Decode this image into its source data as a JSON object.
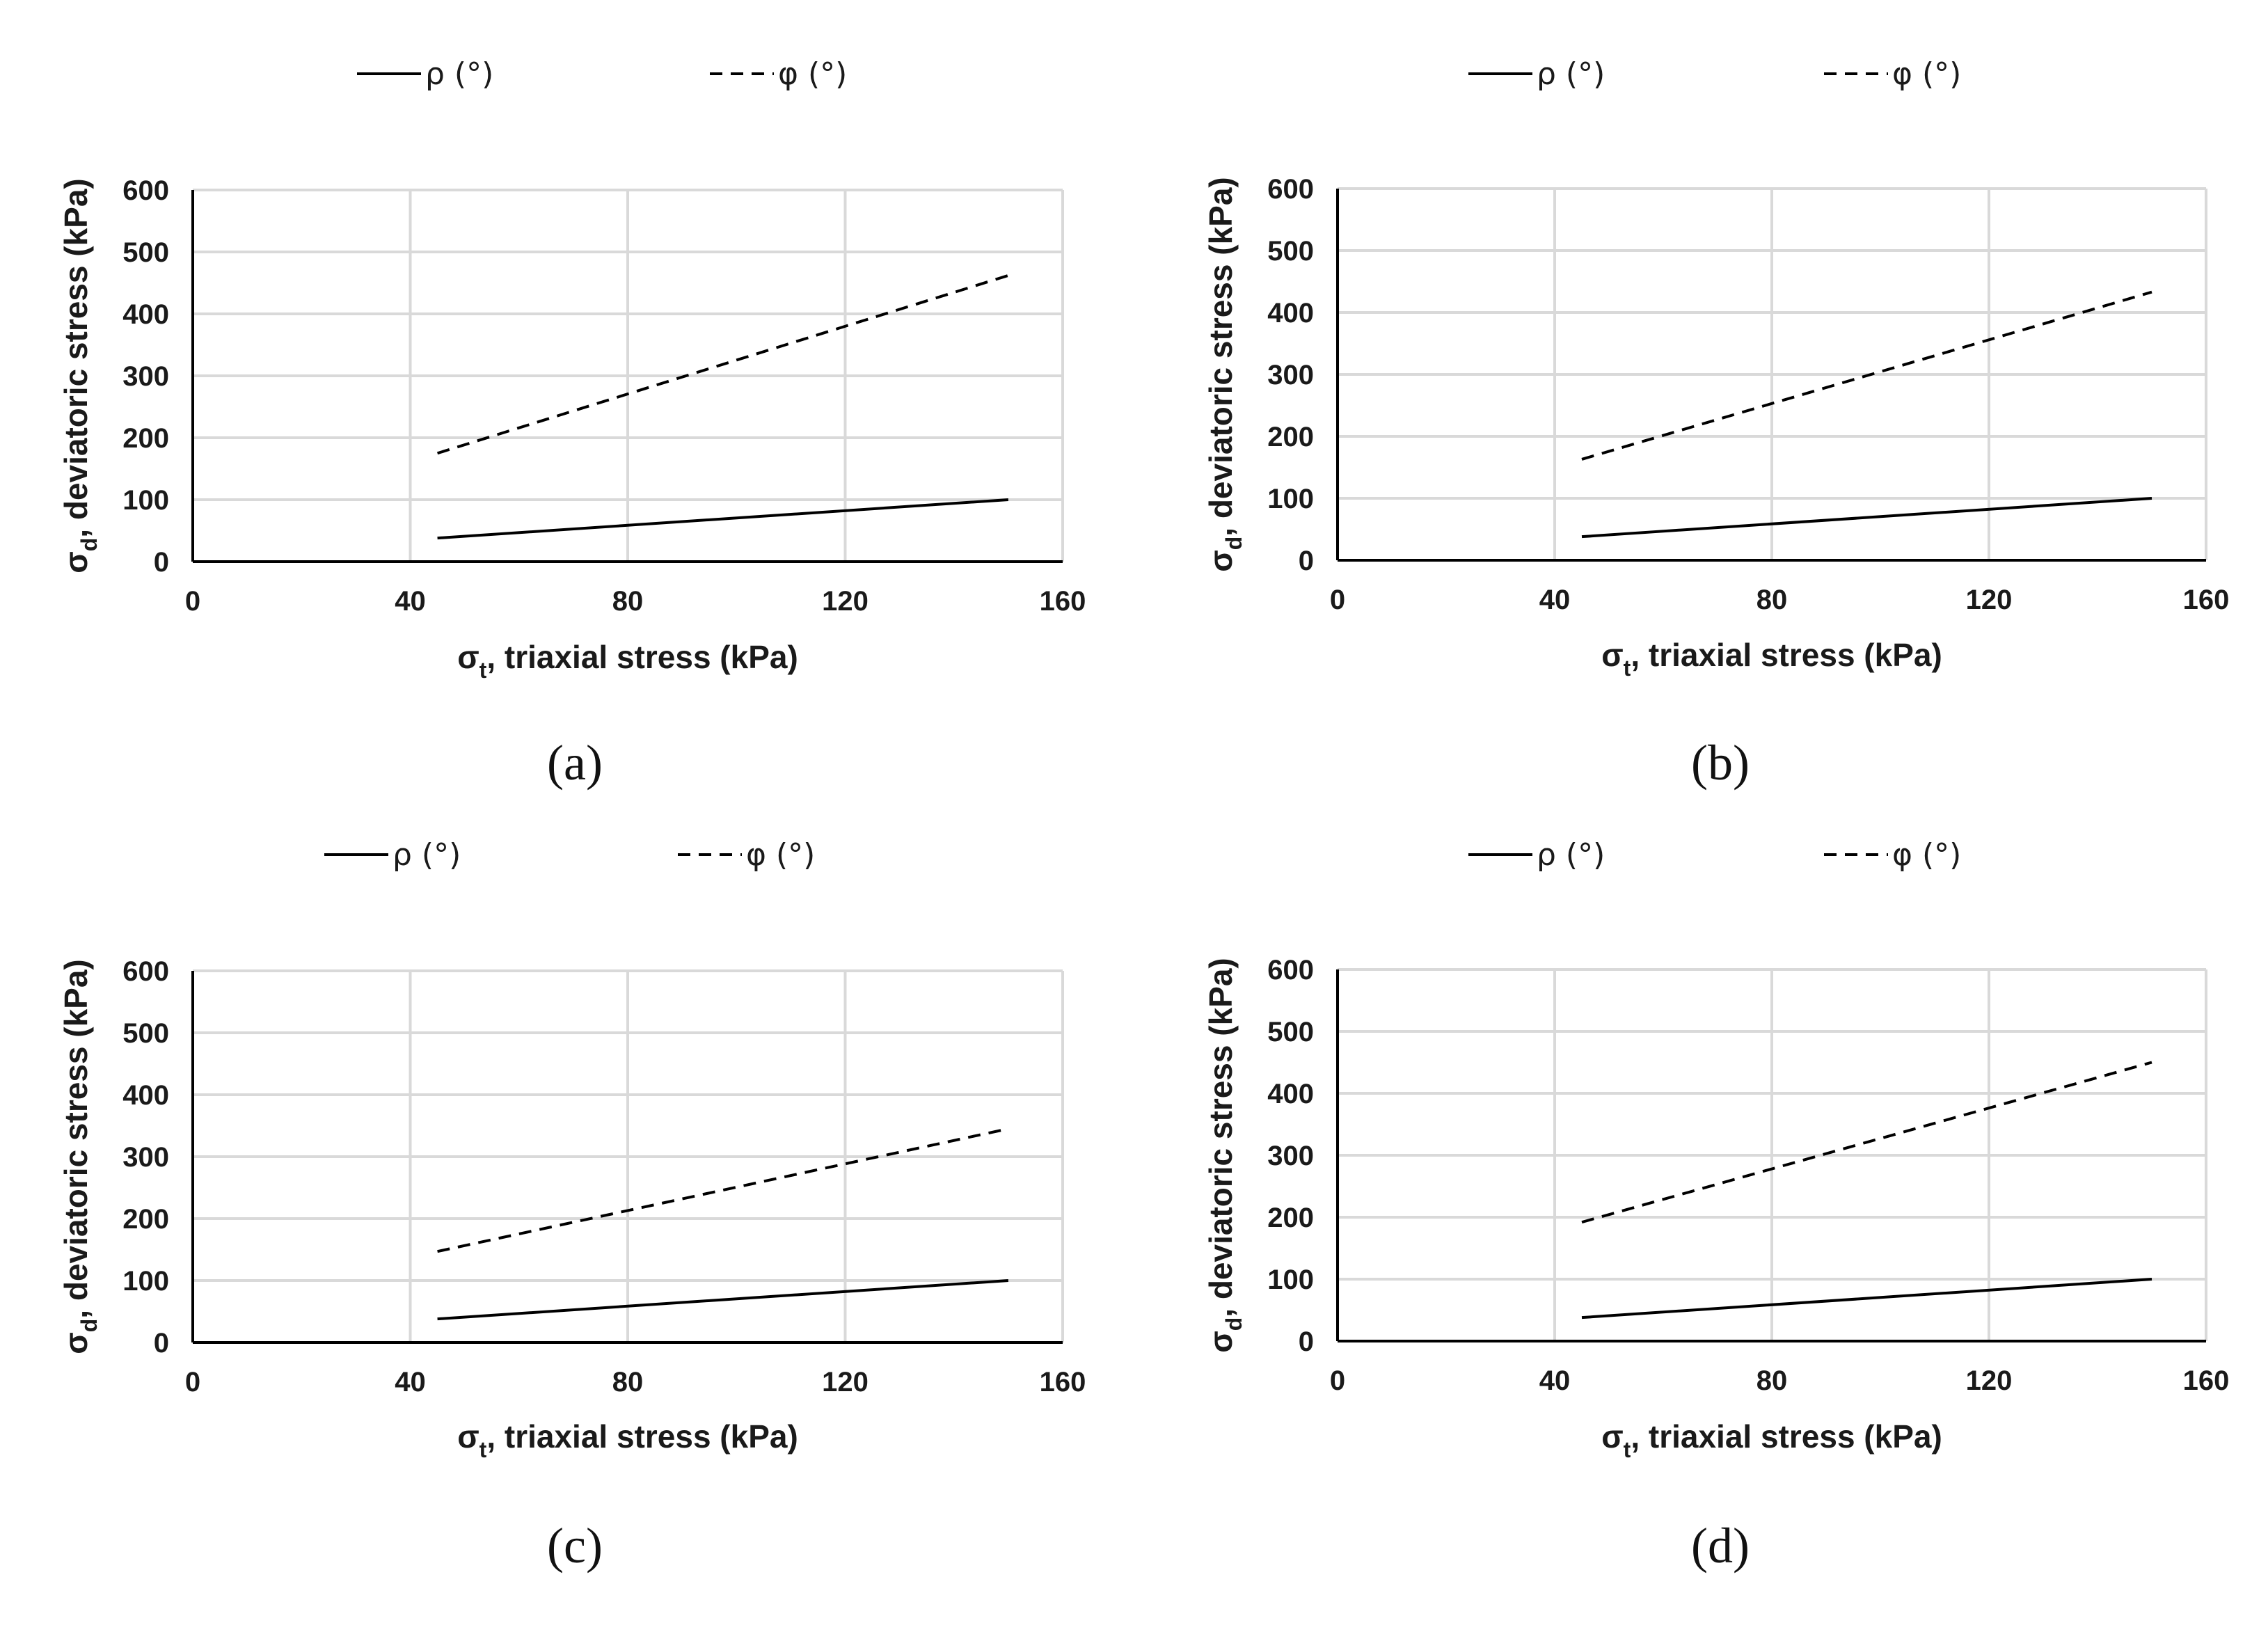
{
  "chart_data": [
    {
      "panel": "(a)",
      "type": "line",
      "xlabel": {
        "main": "σ",
        "sub": "t",
        "rest": ", triaxial stress (kPa)"
      },
      "ylabel": {
        "main": "σ",
        "sub": "d",
        "rest": ", deviatoric stress (kPa)"
      },
      "xlim": [
        0,
        160
      ],
      "ylim": [
        0,
        600
      ],
      "xticks": [
        "0",
        "40",
        "80",
        "120",
        "160"
      ],
      "yticks": [
        "0",
        "100",
        "200",
        "300",
        "400",
        "500",
        "600"
      ],
      "grid": true,
      "legend_position": "top",
      "series": [
        {
          "name": "ρ (°)",
          "style": "solid",
          "x": [
            45,
            150
          ],
          "y": [
            38,
            100
          ]
        },
        {
          "name": "φ (°)",
          "style": "dashed",
          "x": [
            45,
            150
          ],
          "y": [
            175,
            462
          ]
        }
      ]
    },
    {
      "panel": "(b)",
      "type": "line",
      "xlabel": {
        "main": "σ",
        "sub": "t",
        "rest": ", triaxial stress (kPa)"
      },
      "ylabel": {
        "main": "σ",
        "sub": "d",
        "rest": ", deviatoric stress (kPa)"
      },
      "xlim": [
        0,
        160
      ],
      "ylim": [
        0,
        600
      ],
      "xticks": [
        "0",
        "40",
        "80",
        "120",
        "160"
      ],
      "yticks": [
        "0",
        "100",
        "200",
        "300",
        "400",
        "500",
        "600"
      ],
      "grid": true,
      "legend_position": "top",
      "series": [
        {
          "name": "ρ (°)",
          "style": "solid",
          "x": [
            45,
            150
          ],
          "y": [
            38,
            100
          ]
        },
        {
          "name": "φ (°)",
          "style": "dashed",
          "x": [
            45,
            150
          ],
          "y": [
            163,
            433
          ]
        }
      ]
    },
    {
      "panel": "(c)",
      "type": "line",
      "xlabel": {
        "main": "σ",
        "sub": "t",
        "rest": ", triaxial stress (kPa)"
      },
      "ylabel": {
        "main": "σ",
        "sub": "d",
        "rest": ", deviatoric stress (kPa)"
      },
      "xlim": [
        0,
        160
      ],
      "ylim": [
        0,
        600
      ],
      "xticks": [
        "0",
        "40",
        "80",
        "120",
        "160"
      ],
      "yticks": [
        "0",
        "100",
        "200",
        "300",
        "400",
        "500",
        "600"
      ],
      "grid": true,
      "legend_position": "top",
      "series": [
        {
          "name": "ρ (°)",
          "style": "solid",
          "x": [
            45,
            150
          ],
          "y": [
            38,
            100
          ]
        },
        {
          "name": "φ (°)",
          "style": "dashed",
          "x": [
            45,
            150
          ],
          "y": [
            147,
            345
          ]
        }
      ]
    },
    {
      "panel": "(d)",
      "type": "line",
      "xlabel": {
        "main": "σ",
        "sub": "t",
        "rest": ", triaxial stress (kPa)"
      },
      "ylabel": {
        "main": "σ",
        "sub": "d",
        "rest": ", deviatoric stress (kPa)"
      },
      "xlim": [
        0,
        160
      ],
      "ylim": [
        0,
        600
      ],
      "xticks": [
        "0",
        "40",
        "80",
        "120",
        "160"
      ],
      "yticks": [
        "0",
        "100",
        "200",
        "300",
        "400",
        "500",
        "600"
      ],
      "grid": true,
      "legend_position": "top",
      "series": [
        {
          "name": "ρ (°)",
          "style": "solid",
          "x": [
            45,
            150
          ],
          "y": [
            38,
            100
          ]
        },
        {
          "name": "φ (°)",
          "style": "dashed",
          "x": [
            45,
            150
          ],
          "y": [
            192,
            450
          ]
        }
      ]
    }
  ],
  "colors": {
    "line": "#000000",
    "grid": "#d9d9d9",
    "axis": "#000000",
    "text": "#1a1a1a"
  }
}
